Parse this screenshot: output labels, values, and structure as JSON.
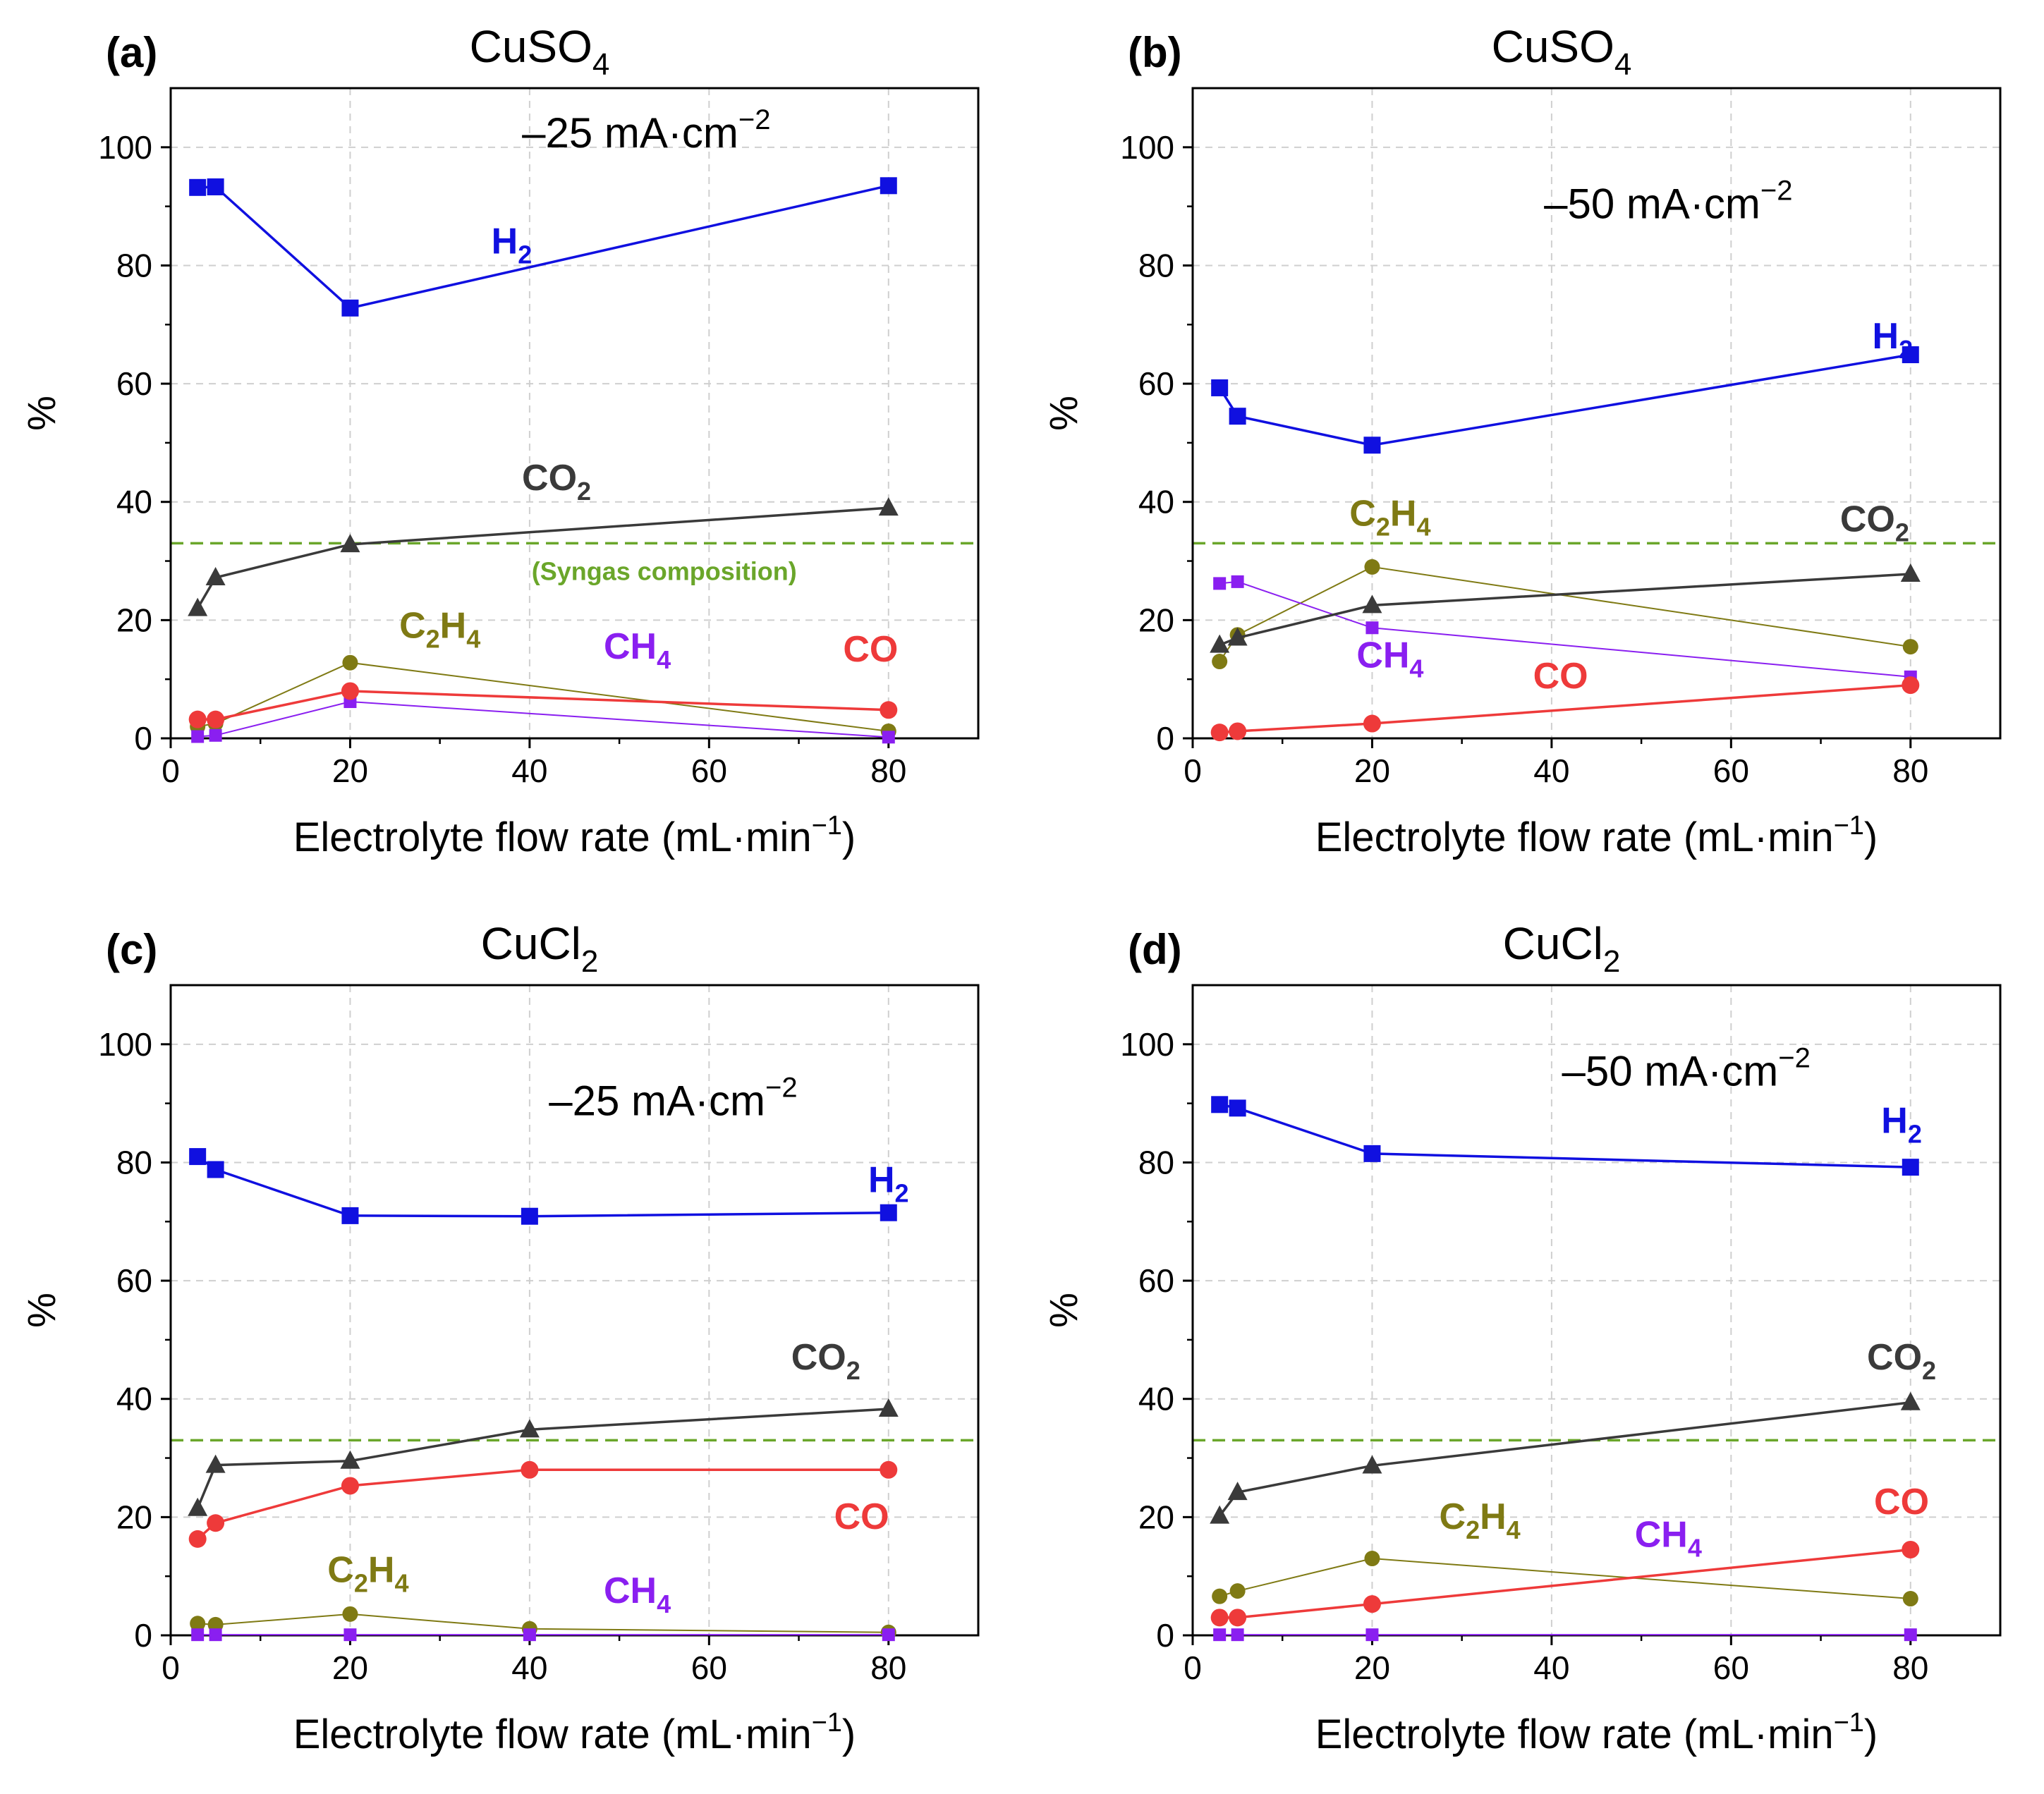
{
  "figure": {
    "colors": {
      "H2": "#1010e0",
      "CO2": "#3a3a3a",
      "C2H4": "#7f7a14",
      "CH4": "#8a1ff0",
      "CO": "#ee3a3a",
      "syngas": "#6aa62a"
    }
  },
  "chart_data": [
    {
      "panel": "a",
      "panel_label": "(a)",
      "type": "line",
      "title": "CuSO",
      "title_sub": "4",
      "current_label": "–25 mA·cm",
      "current_exp": "−2",
      "xlabel": "Electrolyte flow rate (mL·min",
      "xlabel_exp": "−1",
      "xlabel_end": ")",
      "ylabel": "%",
      "xlim": [
        0,
        90
      ],
      "ylim": [
        0,
        110
      ],
      "xticks": [
        0,
        20,
        40,
        60,
        80
      ],
      "yticks": [
        0,
        20,
        40,
        60,
        80,
        100
      ],
      "reference_line": {
        "y": 33,
        "label": "(Syngas composition)"
      },
      "series": [
        {
          "name": "H2",
          "label": "H",
          "sub": "2",
          "marker": "square",
          "x": [
            3,
            5,
            20,
            80
          ],
          "values": [
            93.2,
            93.3,
            72.8,
            93.5
          ]
        },
        {
          "name": "CO2",
          "label": "CO",
          "sub": "2",
          "marker": "triangle",
          "x": [
            3,
            5,
            20,
            80
          ],
          "values": [
            22,
            27.2,
            32.8,
            39
          ]
        },
        {
          "name": "C2H4",
          "label": "C",
          "sub": "2",
          "label2": "H",
          "sub2": "4",
          "marker": "circle",
          "x": [
            3,
            5,
            20,
            80
          ],
          "values": [
            2,
            2.5,
            12.8,
            1.2
          ]
        },
        {
          "name": "CH4",
          "label": "CH",
          "sub": "4",
          "marker": "square-small",
          "x": [
            3,
            5,
            20,
            80
          ],
          "values": [
            0.3,
            0.5,
            6.2,
            0.2
          ]
        },
        {
          "name": "CO",
          "label": "CO",
          "sub": "",
          "marker": "circle",
          "x": [
            3,
            5,
            20,
            80
          ],
          "values": [
            3.2,
            3.2,
            8,
            4.8
          ]
        }
      ]
    },
    {
      "panel": "b",
      "panel_label": "(b)",
      "type": "line",
      "title": "CuSO",
      "title_sub": "4",
      "current_label": "–50 mA·cm",
      "current_exp": "−2",
      "xlabel": "Electrolyte flow rate (mL·min",
      "xlabel_exp": "−1",
      "xlabel_end": ")",
      "ylabel": "%",
      "xlim": [
        0,
        90
      ],
      "ylim": [
        0,
        110
      ],
      "xticks": [
        0,
        20,
        40,
        60,
        80
      ],
      "yticks": [
        0,
        20,
        40,
        60,
        80,
        100
      ],
      "reference_line": {
        "y": 33,
        "label": ""
      },
      "series": [
        {
          "name": "H2",
          "label": "H",
          "sub": "2",
          "marker": "square",
          "x": [
            3,
            5,
            20,
            80
          ],
          "values": [
            59.3,
            54.5,
            49.6,
            64.9
          ]
        },
        {
          "name": "CO2",
          "label": "CO",
          "sub": "2",
          "marker": "triangle",
          "x": [
            3,
            5,
            20,
            80
          ],
          "values": [
            15.8,
            17,
            22.5,
            27.8
          ]
        },
        {
          "name": "C2H4",
          "label": "C",
          "sub": "2",
          "label2": "H",
          "sub2": "4",
          "marker": "circle",
          "x": [
            3,
            5,
            20,
            80
          ],
          "values": [
            13,
            17.5,
            29,
            15.5
          ]
        },
        {
          "name": "CH4",
          "label": "CH",
          "sub": "4",
          "marker": "square-small",
          "x": [
            3,
            5,
            20,
            80
          ],
          "values": [
            26.2,
            26.5,
            18.7,
            10.4
          ]
        },
        {
          "name": "CO",
          "label": "CO",
          "sub": "",
          "marker": "circle",
          "x": [
            3,
            5,
            20,
            80
          ],
          "values": [
            1,
            1.2,
            2.5,
            9
          ]
        }
      ]
    },
    {
      "panel": "c",
      "panel_label": "(c)",
      "type": "line",
      "title": "CuCl",
      "title_sub": "2",
      "current_label": "–25 mA·cm",
      "current_exp": "−2",
      "xlabel": "Electrolyte flow rate (mL·min",
      "xlabel_exp": "−1",
      "xlabel_end": ")",
      "ylabel": "%",
      "xlim": [
        0,
        90
      ],
      "ylim": [
        0,
        110
      ],
      "xticks": [
        0,
        20,
        40,
        60,
        80
      ],
      "yticks": [
        0,
        20,
        40,
        60,
        80,
        100
      ],
      "reference_line": {
        "y": 33,
        "label": ""
      },
      "series": [
        {
          "name": "H2",
          "label": "H",
          "sub": "2",
          "marker": "square",
          "x": [
            3,
            5,
            20,
            40,
            80
          ],
          "values": [
            81,
            78.8,
            71,
            70.9,
            71.5
          ]
        },
        {
          "name": "CO2",
          "label": "CO",
          "sub": "2",
          "marker": "triangle",
          "x": [
            3,
            5,
            20,
            40,
            80
          ],
          "values": [
            21.5,
            28.8,
            29.5,
            34.8,
            38.3
          ]
        },
        {
          "name": "C2H4",
          "label": "C",
          "sub": "2",
          "label2": "H",
          "sub2": "4",
          "marker": "circle",
          "x": [
            3,
            5,
            20,
            40,
            80
          ],
          "values": [
            2,
            1.8,
            3.6,
            1.1,
            0.5
          ]
        },
        {
          "name": "CH4",
          "label": "CH",
          "sub": "4",
          "marker": "square-small",
          "x": [
            3,
            5,
            20,
            40,
            80
          ],
          "values": [
            0.1,
            0.1,
            0.1,
            0.1,
            0.1
          ]
        },
        {
          "name": "CO",
          "label": "CO",
          "sub": "",
          "marker": "circle",
          "x": [
            3,
            5,
            20,
            40,
            80
          ],
          "values": [
            16.3,
            19,
            25.3,
            28,
            28
          ]
        }
      ]
    },
    {
      "panel": "d",
      "panel_label": "(d)",
      "type": "line",
      "title": "CuCl",
      "title_sub": "2",
      "current_label": "–50 mA·cm",
      "current_exp": "−2",
      "xlabel": "Electrolyte flow rate (mL·min",
      "xlabel_exp": "−1",
      "xlabel_end": ")",
      "ylabel": "%",
      "xlim": [
        0,
        90
      ],
      "ylim": [
        0,
        110
      ],
      "xticks": [
        0,
        20,
        40,
        60,
        80
      ],
      "yticks": [
        0,
        20,
        40,
        60,
        80,
        100
      ],
      "reference_line": {
        "y": 33,
        "label": ""
      },
      "series": [
        {
          "name": "H2",
          "label": "H",
          "sub": "2",
          "marker": "square",
          "x": [
            3,
            5,
            20,
            80
          ],
          "values": [
            89.8,
            89.2,
            81.5,
            79.2
          ]
        },
        {
          "name": "CO2",
          "label": "CO",
          "sub": "2",
          "marker": "triangle",
          "x": [
            3,
            5,
            20,
            80
          ],
          "values": [
            20.2,
            24.2,
            28.7,
            39.4
          ]
        },
        {
          "name": "C2H4",
          "label": "C",
          "sub": "2",
          "label2": "H",
          "sub2": "4",
          "marker": "circle",
          "x": [
            3,
            5,
            20,
            80
          ],
          "values": [
            6.6,
            7.5,
            13,
            6.2
          ]
        },
        {
          "name": "CH4",
          "label": "CH",
          "sub": "4",
          "marker": "square-small",
          "x": [
            3,
            5,
            20,
            80
          ],
          "values": [
            0.1,
            0.1,
            0.1,
            0.1
          ]
        },
        {
          "name": "CO",
          "label": "CO",
          "sub": "",
          "marker": "circle",
          "x": [
            3,
            5,
            20,
            80
          ],
          "values": [
            3,
            3,
            5.3,
            14.5
          ]
        }
      ]
    }
  ]
}
